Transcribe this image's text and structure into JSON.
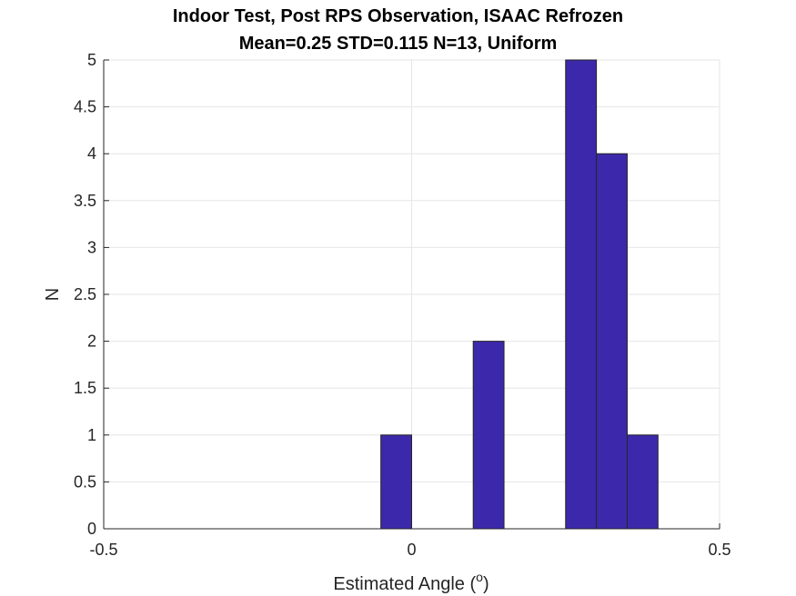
{
  "chart_data": {
    "type": "bar",
    "title": "Indoor Test, Post RPS Observation, ISAAC Refrozen",
    "subtitle": "Mean=0.25 STD=0.115 N=13, Uniform",
    "xlabel": "Estimated Angle (",
    "xlabel_superscript": "o",
    "xlabel_suffix": ")",
    "ylabel": "N",
    "xlim": [
      -0.5,
      0.5
    ],
    "ylim": [
      0,
      5
    ],
    "xticks": [
      "-0.5",
      "0",
      "0.5"
    ],
    "xtick_values": [
      -0.5,
      0,
      0.5
    ],
    "yticks": [
      "0",
      "0.5",
      "1",
      "1.5",
      "2",
      "2.5",
      "3",
      "3.5",
      "4",
      "4.5",
      "5"
    ],
    "ytick_values": [
      0,
      0.5,
      1,
      1.5,
      2,
      2.5,
      3,
      3.5,
      4,
      4.5,
      5
    ],
    "bin_edges": [
      -0.05,
      0.0,
      0.05,
      0.1,
      0.15,
      0.2,
      0.25,
      0.3,
      0.35,
      0.4
    ],
    "counts": [
      1,
      0,
      0,
      2,
      0,
      0,
      5,
      4,
      1
    ],
    "bar_color": "#3c28aa",
    "bar_edge_color": "#262626",
    "grid": true
  }
}
